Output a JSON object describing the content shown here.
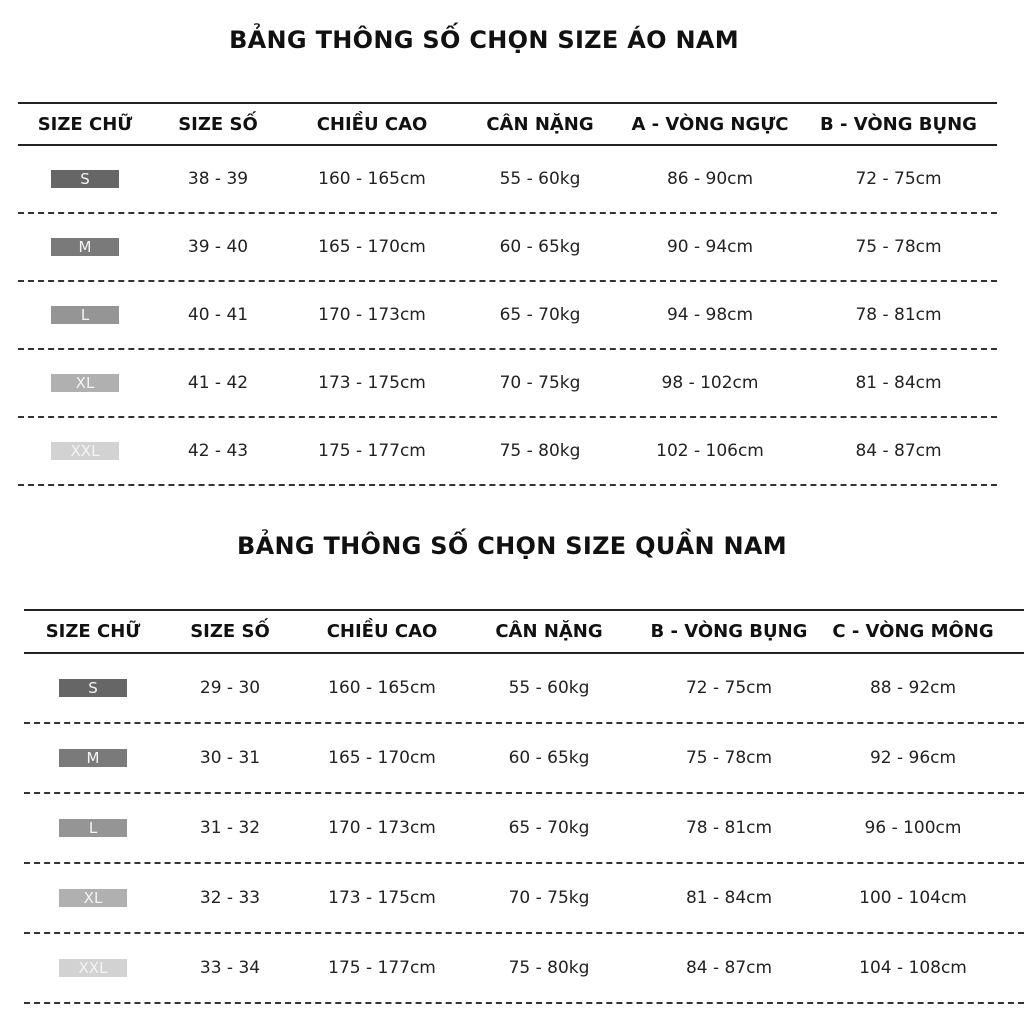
{
  "badge_colors": {
    "S": "#666666",
    "M": "#7a7a7a",
    "L": "#959595",
    "XL": "#b0b0b0",
    "XXL": "#d2d2d2"
  },
  "shirt": {
    "title": "BẢNG THÔNG SỐ CHỌN SIZE ÁO NAM",
    "headers": [
      "SIZE CHỮ",
      "SIZE SỐ",
      "CHIỀU CAO",
      "CÂN NẶNG",
      "A - VÒNG NGỰC",
      "B - VÒNG BỤNG"
    ],
    "rows": [
      [
        "S",
        "38 - 39",
        "160 - 165cm",
        "55 - 60kg",
        "86 - 90cm",
        "72 - 75cm"
      ],
      [
        "M",
        "39 - 40",
        "165 - 170cm",
        "60 - 65kg",
        "90 - 94cm",
        "75 - 78cm"
      ],
      [
        "L",
        "40 - 41",
        "170 - 173cm",
        "65 - 70kg",
        "94 - 98cm",
        "78 - 81cm"
      ],
      [
        "XL",
        "41 - 42",
        "173 - 175cm",
        "70 - 75kg",
        "98 - 102cm",
        "81 - 84cm"
      ],
      [
        "XXL",
        "42 - 43",
        "175 - 177cm",
        "75 - 80kg",
        "102 - 106cm",
        "84 - 87cm"
      ]
    ]
  },
  "pants": {
    "title": "BẢNG THÔNG SỐ CHỌN SIZE QUẦN NAM",
    "headers": [
      "SIZE CHỮ",
      "SIZE SỐ",
      "CHIỀU CAO",
      "CÂN NẶNG",
      "B - VÒNG BỤNG",
      "C - VÒNG MÔNG"
    ],
    "rows": [
      [
        "S",
        "29 - 30",
        "160 - 165cm",
        "55 - 60kg",
        "72 - 75cm",
        "88 - 92cm"
      ],
      [
        "M",
        "30 - 31",
        "165 - 170cm",
        "60 - 65kg",
        "75 - 78cm",
        "92 - 96cm"
      ],
      [
        "L",
        "31 - 32",
        "170 - 173cm",
        "65 - 70kg",
        "78 - 81cm",
        "96 - 100cm"
      ],
      [
        "XL",
        "32 - 33",
        "173 - 175cm",
        "70 - 75kg",
        "81 - 84cm",
        "100 - 104cm"
      ],
      [
        "XXL",
        "33 - 34",
        "175 - 177cm",
        "75 - 80kg",
        "84 - 87cm",
        "104 - 108cm"
      ]
    ]
  }
}
